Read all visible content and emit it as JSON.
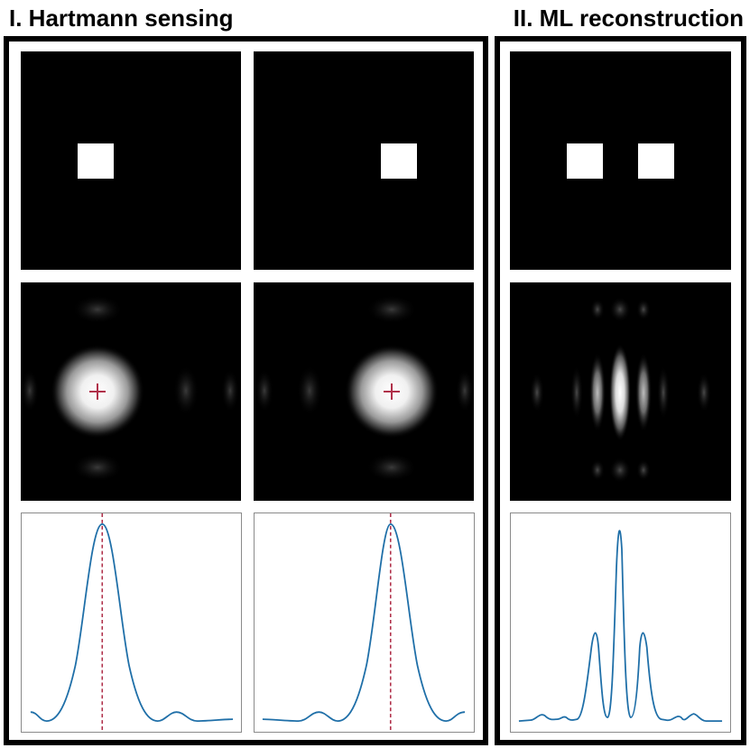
{
  "panels": {
    "hartmann": {
      "title": "I. Hartmann sensing"
    },
    "ml": {
      "title": "II. ML reconstruction"
    }
  },
  "colors": {
    "curve": "#1f6fa8",
    "marker": "#b0304a",
    "background": "#000000",
    "frame": "#000000"
  },
  "icons": {
    "aperture": "white-square",
    "centroid": "plus-crosshair"
  }
}
